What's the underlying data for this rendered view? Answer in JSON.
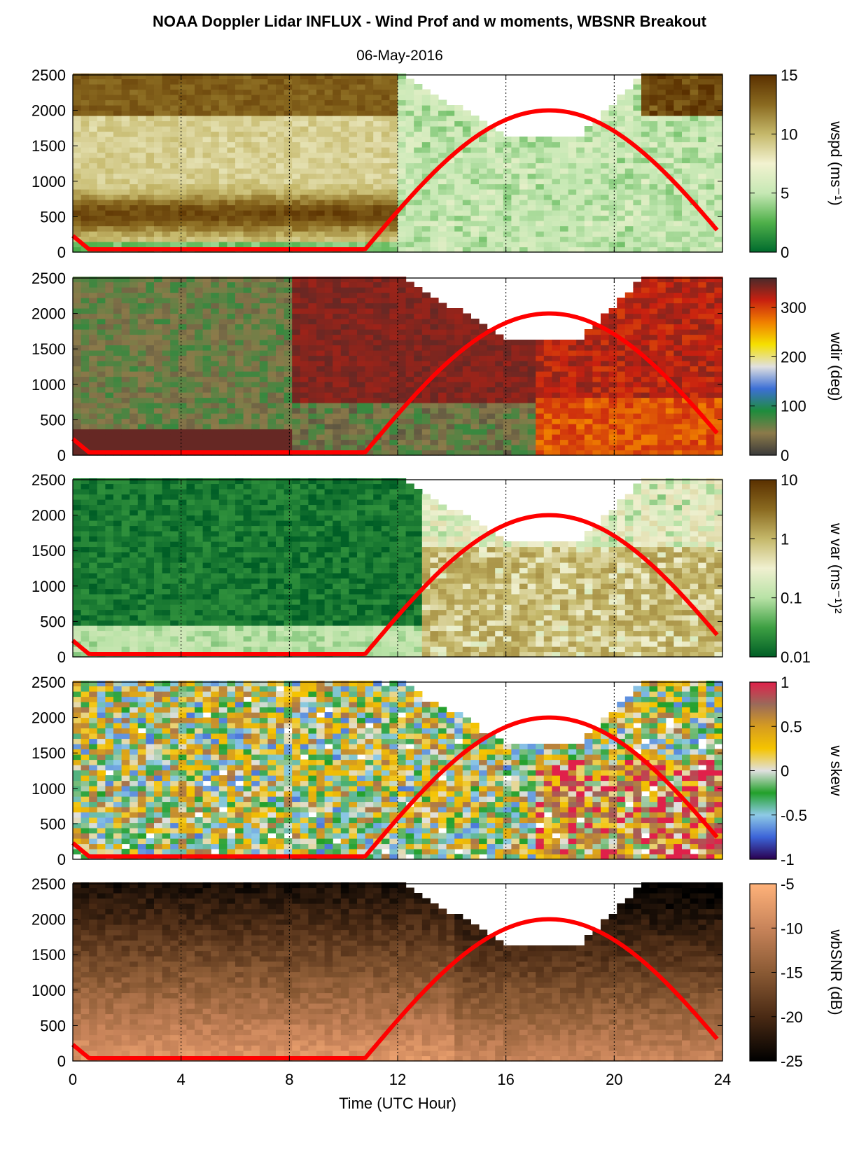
{
  "header": {
    "title": "NOAA Doppler Lidar INFLUX - Wind Prof and w moments, WBSNR Breakout",
    "date": "06-May-2016"
  },
  "chart_data": {
    "type": "heatmap",
    "xlabel": "Time (UTC Hour)",
    "xlim": [
      0,
      24
    ],
    "xticks": [
      "0",
      "4",
      "8",
      "12",
      "16",
      "20",
      "24"
    ],
    "ylim": [
      0,
      2500
    ],
    "yticks": [
      "0",
      "500",
      "1000",
      "1500",
      "2000",
      "2500"
    ],
    "vertical_gridlines_at_hours": [
      4,
      8,
      12,
      16,
      20
    ],
    "overlay_curve": {
      "color": "#ff0000",
      "note_x_hours": [
        0,
        0.6,
        10.8,
        17.6,
        23.8
      ],
      "y_m": [
        230,
        40,
        40,
        2000,
        400
      ]
    },
    "panels": [
      {
        "colorbar_label": "wspd (ms⁻¹)",
        "scale": "linear",
        "clim": [
          0,
          15
        ],
        "colorbar_ticks": [
          "15",
          "10",
          "5",
          "0"
        ],
        "colormap": [
          "#006b2d",
          "#4fb04a",
          "#c6e8b4",
          "#f2f2d0",
          "#c5b86a",
          "#8a6a20",
          "#5a3000"
        ]
      },
      {
        "colorbar_label": "wdir (deg)",
        "scale": "linear",
        "clim": [
          0,
          360
        ],
        "colorbar_ticks": [
          "300",
          "200",
          "100",
          "0"
        ],
        "colormap": [
          "#3a3a3a",
          "#8c7a4a",
          "#1e8c3c",
          "#3c6fd6",
          "#e0e0e0",
          "#f5e000",
          "#f08000",
          "#c82010",
          "#4a2a2a"
        ]
      },
      {
        "colorbar_label": "w var (ms⁻¹)²",
        "scale": "log",
        "clim": [
          0.01,
          10
        ],
        "colorbar_ticks": [
          "10",
          "1",
          "0.1",
          "0.01"
        ],
        "colormap": [
          "#005e26",
          "#3ea043",
          "#b8e2a6",
          "#f0f0d0",
          "#c5b86a",
          "#8a6a20",
          "#5a3000"
        ]
      },
      {
        "colorbar_label": "w skew",
        "scale": "linear",
        "clim": [
          -1,
          1
        ],
        "colorbar_ticks": [
          "1",
          "0.5",
          "0",
          "-0.5",
          "-1"
        ],
        "colormap": [
          "#2a0050",
          "#3c64d8",
          "#8ecae6",
          "#22a02a",
          "#e0e0e0",
          "#f5c400",
          "#d69c20",
          "#9a6a5a",
          "#e0204a"
        ]
      },
      {
        "colorbar_label": "wbSNR (dB)",
        "scale": "linear",
        "clim": [
          -25,
          -5
        ],
        "colorbar_ticks": [
          "-5",
          "-10",
          "-15",
          "-20",
          "-25"
        ],
        "colormap": [
          "#000000",
          "#4a2a14",
          "#8a5a34",
          "#c8845a",
          "#ffb27a"
        ]
      }
    ]
  }
}
